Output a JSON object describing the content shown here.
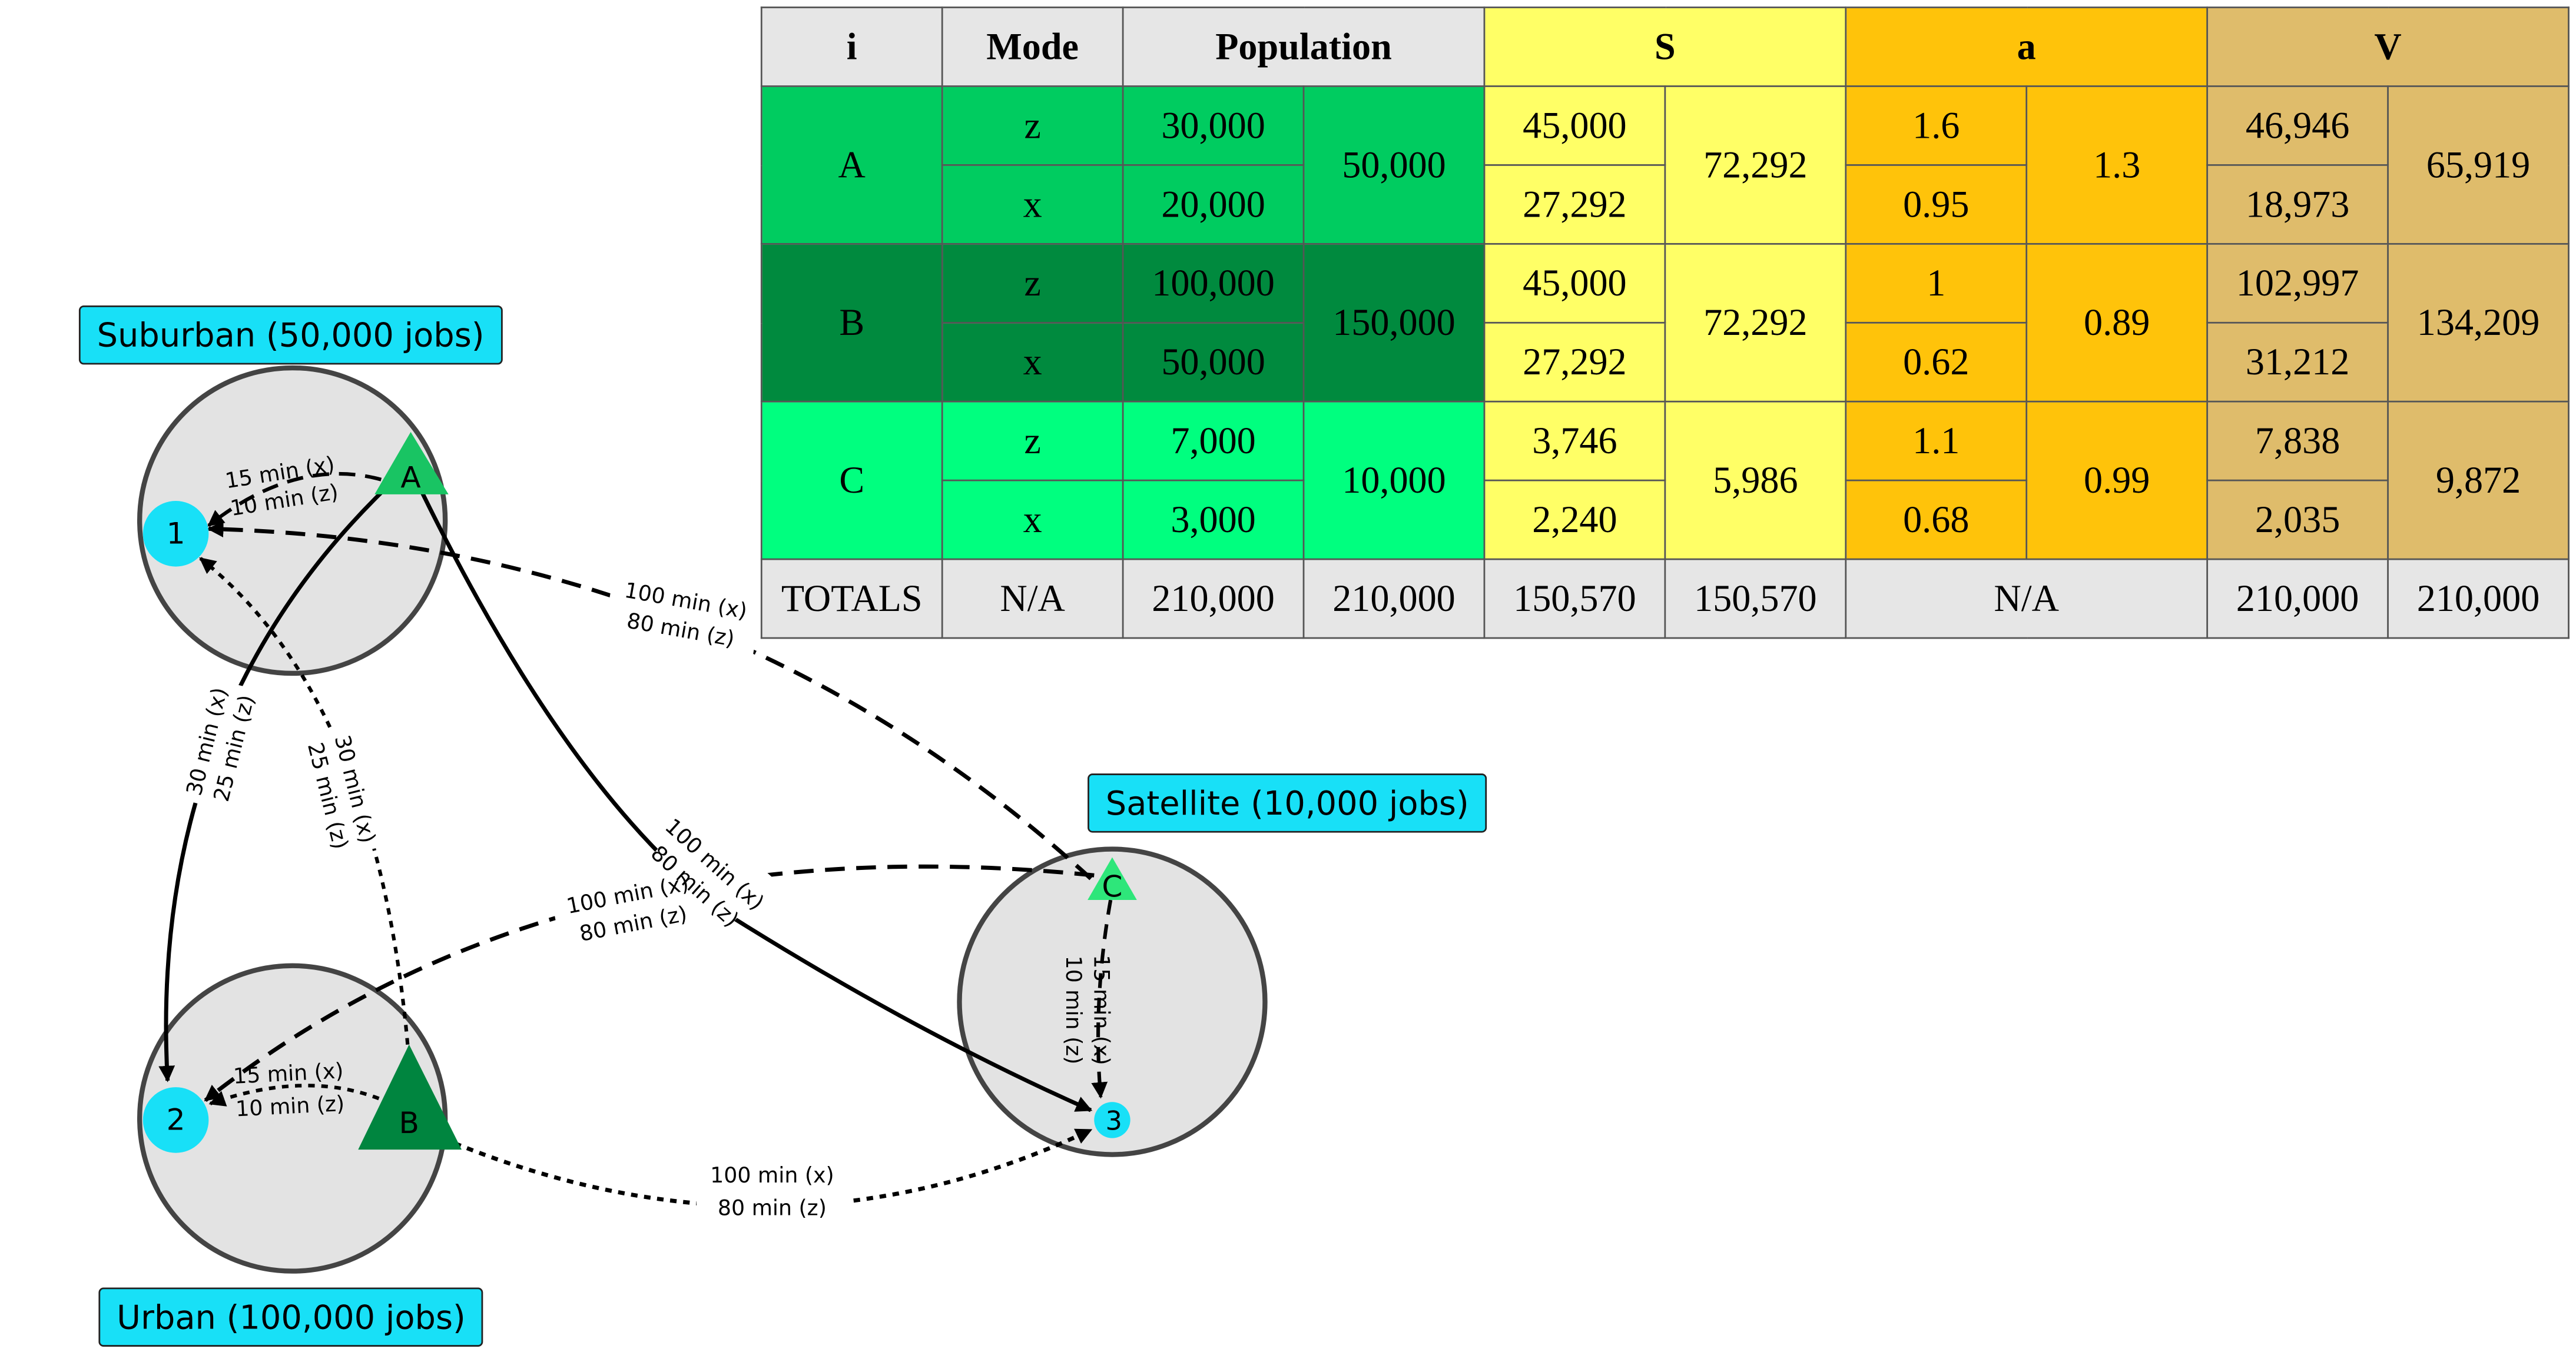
{
  "regions": {
    "suburban": "Suburban (50,000 jobs)",
    "urban": "Urban (100,000 jobs)",
    "satellite": "Satellite (10,000 jobs)"
  },
  "nodes": {
    "residential": [
      "A",
      "B",
      "C"
    ],
    "employment": [
      "1",
      "2",
      "3"
    ]
  },
  "links": {
    "a_to_1": [
      "15 min (x)",
      "10 min (z)"
    ],
    "a_to_2": [
      "30 min (x)",
      "25 min (z)"
    ],
    "b_to_1": [
      "30 min (x)",
      "25 min (z)"
    ],
    "a_to_3": [
      "100 min (x)",
      "80 min (z)"
    ],
    "c_to_1": [
      "100 min (x)",
      "80 min (z)"
    ],
    "c_to_2": [
      "100 min (x)",
      "80 min (z)"
    ],
    "b_to_2": [
      "15 min (x)",
      "10 min (z)"
    ],
    "b_to_3": [
      "100 min (x)",
      "80 min (z)"
    ],
    "c_to_3": [
      "15 min (x)",
      "10 min (z)"
    ]
  },
  "colors": {
    "region_fill": "#e3e3e3",
    "node_cyan": "#18e0f7",
    "node_a": "#19c463",
    "node_b": "#00853f",
    "node_c": "#2ee67a"
  },
  "table": {
    "headers": {
      "i": "i",
      "mode": "Mode",
      "population": "Population",
      "s": "S",
      "a": "a",
      "v": "V"
    },
    "rows": [
      {
        "i": "A",
        "z": {
          "mode": "z",
          "pop": "30,000",
          "s": "45,000",
          "a": "1.6",
          "v": "46,946"
        },
        "x": {
          "mode": "x",
          "pop": "20,000",
          "s": "27,292",
          "a": "0.95",
          "v": "18,973"
        },
        "pop_total": "50,000",
        "s_total": "72,292",
        "a_total": "1.3",
        "v_total": "65,919"
      },
      {
        "i": "B",
        "z": {
          "mode": "z",
          "pop": "100,000",
          "s": "45,000",
          "a": "1",
          "v": "102,997"
        },
        "x": {
          "mode": "x",
          "pop": "50,000",
          "s": "27,292",
          "a": "0.62",
          "v": "31,212"
        },
        "pop_total": "150,000",
        "s_total": "72,292",
        "a_total": "0.89",
        "v_total": "134,209"
      },
      {
        "i": "C",
        "z": {
          "mode": "z",
          "pop": "7,000",
          "s": "3,746",
          "a": "1.1",
          "v": "7,838"
        },
        "x": {
          "mode": "x",
          "pop": "3,000",
          "s": "2,240",
          "a": "0.68",
          "v": "2,035"
        },
        "pop_total": "10,000",
        "s_total": "5,986",
        "a_total": "0.99",
        "v_total": "9,872"
      }
    ],
    "totals": {
      "label": "TOTALS",
      "mode": "N/A",
      "pop1": "210,000",
      "pop2": "210,000",
      "s1": "150,570",
      "s2": "150,570",
      "a": "N/A",
      "v1": "210,000",
      "v2": "210,000"
    }
  }
}
